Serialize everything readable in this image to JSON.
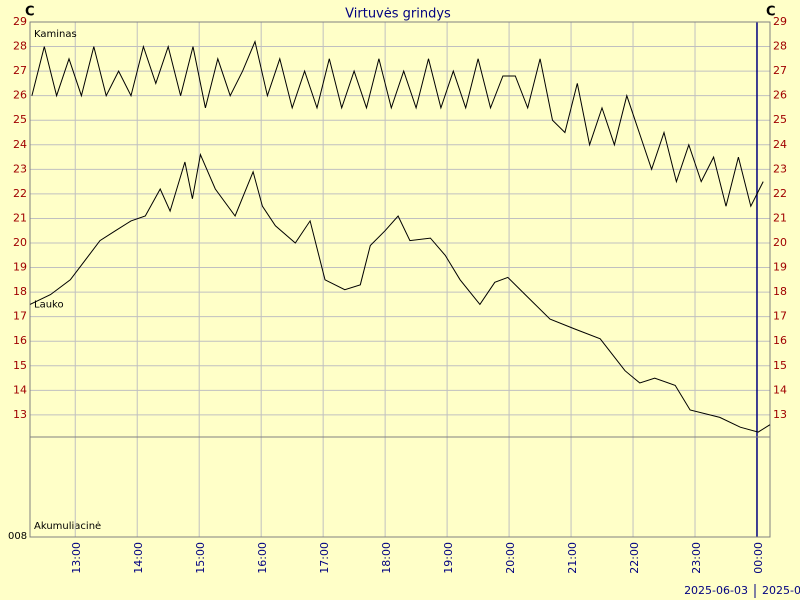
{
  "chart_data": {
    "type": "line",
    "title": "Virtuvės grindys",
    "y_unit_left": "C",
    "y_unit_right": "C",
    "lower_panel_label": "Akumuliacinė",
    "lower_panel_value": "008",
    "dates": [
      "2025-06-03",
      "2025-0"
    ],
    "xlim": [
      12.27,
      24.21
    ],
    "ylim": [
      12.1,
      29
    ],
    "xticks": [
      {
        "value": 13,
        "label": "13:00"
      },
      {
        "value": 14,
        "label": "14:00"
      },
      {
        "value": 15,
        "label": "15:00"
      },
      {
        "value": 16,
        "label": "16:00"
      },
      {
        "value": 17,
        "label": "17:00"
      },
      {
        "value": 18,
        "label": "18:00"
      },
      {
        "value": 19,
        "label": "19:00"
      },
      {
        "value": 20,
        "label": "20:00"
      },
      {
        "value": 21,
        "label": "21:00"
      },
      {
        "value": 22,
        "label": "22:00"
      },
      {
        "value": 23,
        "label": "23:00"
      },
      {
        "value": 24,
        "label": "00:00"
      }
    ],
    "yticks": [
      13,
      14,
      15,
      16,
      17,
      18,
      19,
      20,
      21,
      22,
      23,
      24,
      25,
      26,
      27,
      28,
      29
    ],
    "grid": true,
    "series": [
      {
        "name": "Kaminas",
        "color": "#000000",
        "x": [
          12.3,
          12.5,
          12.7,
          12.9,
          13.1,
          13.3,
          13.5,
          13.7,
          13.9,
          14.1,
          14.3,
          14.5,
          14.7,
          14.9,
          15.1,
          15.3,
          15.5,
          15.7,
          15.9,
          16.1,
          16.3,
          16.5,
          16.7,
          16.9,
          17.1,
          17.3,
          17.5,
          17.7,
          17.9,
          18.1,
          18.3,
          18.5,
          18.7,
          18.9,
          19.1,
          19.3,
          19.5,
          19.7,
          19.9,
          20.1,
          20.3,
          20.5,
          20.7,
          20.9,
          21.1,
          21.3,
          21.5,
          21.7,
          21.9,
          22.1,
          22.3,
          22.5,
          22.7,
          22.9,
          23.1,
          23.3,
          23.5,
          23.7,
          23.9,
          24.1
        ],
        "values": [
          26,
          28,
          26,
          27.5,
          26,
          28,
          26,
          27,
          26,
          28,
          26.5,
          28,
          26,
          28,
          25.5,
          27.5,
          26,
          27,
          28.2,
          26,
          27.5,
          25.5,
          27,
          25.5,
          27.5,
          25.5,
          27,
          25.5,
          27.5,
          25.5,
          27,
          25.5,
          27.5,
          25.5,
          27,
          25.5,
          27.5,
          25.5,
          26.8,
          26.8,
          25.5,
          27.5,
          25,
          24.5,
          26.5,
          24,
          25.5,
          24,
          26,
          24.5,
          23,
          24.5,
          22.5,
          24,
          22.5,
          23.5,
          21.5,
          23.5,
          21.5,
          22.5
        ]
      },
      {
        "name": "Lauko",
        "color": "#000000",
        "x": [
          12.27,
          12.6,
          12.92,
          13.16,
          13.4,
          13.65,
          13.9,
          14.13,
          14.37,
          14.53,
          14.77,
          14.89,
          15.02,
          15.26,
          15.58,
          15.87,
          16.02,
          16.23,
          16.55,
          16.79,
          17.03,
          17.35,
          17.6,
          17.76,
          18.0,
          18.21,
          18.4,
          18.73,
          18.97,
          19.21,
          19.53,
          19.77,
          19.98,
          20.26,
          20.66,
          21.06,
          21.47,
          21.87,
          22.11,
          22.35,
          22.68,
          22.92,
          23.4,
          23.73,
          24.02,
          24.21
        ],
        "values": [
          17.5,
          17.9,
          18.5,
          19.3,
          20.1,
          20.5,
          20.9,
          21.1,
          22.2,
          21.3,
          23.3,
          21.8,
          23.6,
          22.2,
          21.1,
          22.9,
          21.5,
          20.7,
          20.0,
          20.9,
          18.5,
          18.1,
          18.3,
          19.9,
          20.5,
          21.1,
          20.1,
          20.2,
          19.5,
          18.5,
          17.5,
          18.4,
          18.6,
          17.9,
          16.9,
          16.5,
          16.1,
          14.8,
          14.3,
          14.5,
          14.2,
          13.2,
          12.9,
          12.5,
          12.3,
          12.6
        ]
      }
    ]
  }
}
